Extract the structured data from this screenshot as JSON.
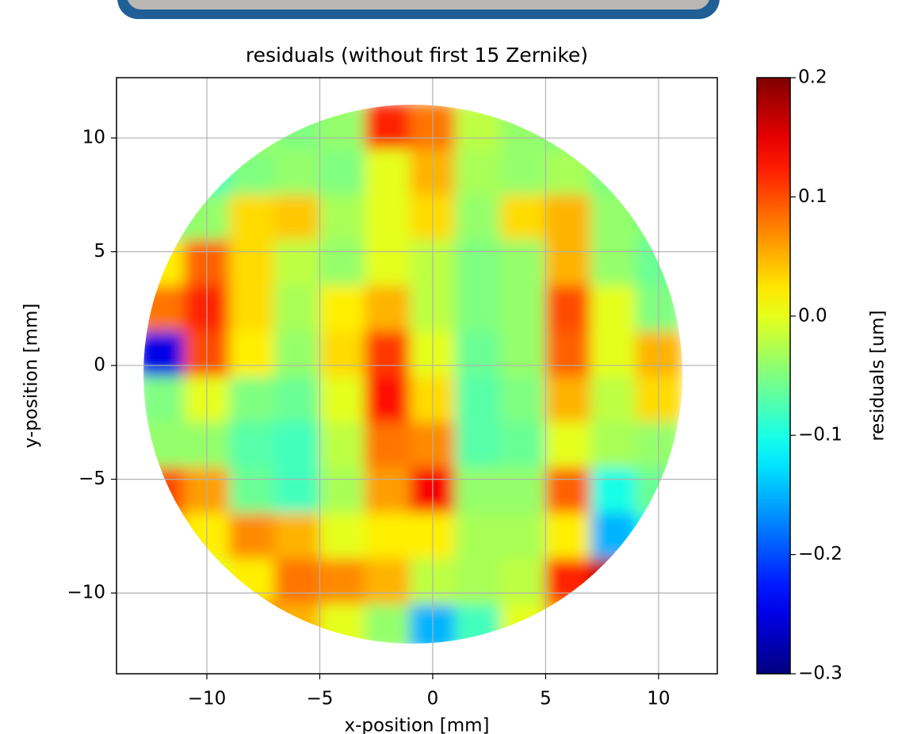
{
  "chart_data": {
    "type": "heatmap",
    "title": "residuals (without first 15 Zernike)",
    "xlabel": "x-position [mm]",
    "ylabel": "y-position [mm]",
    "colorbar_label": "residuals [um]",
    "colormap": "jet",
    "grid": true,
    "xlim": [
      -14,
      12.6
    ],
    "ylim": [
      -13.55,
      12.65
    ],
    "xticks": [
      {
        "value": -10,
        "label": "−10"
      },
      {
        "value": -5,
        "label": "−5"
      },
      0,
      5,
      10
    ],
    "yticks": [
      {
        "value": -10,
        "label": "−10"
      },
      {
        "value": -5,
        "label": "−5"
      },
      0,
      5,
      10
    ],
    "clim": [
      -0.3,
      0.2
    ],
    "cticks": [
      {
        "value": -0.3,
        "label": "−0.3"
      },
      {
        "value": -0.2,
        "label": "−0.2"
      },
      {
        "value": -0.1,
        "label": "−0.1"
      },
      {
        "value": 0,
        "label": "0.0"
      },
      0.1,
      0.2
    ],
    "x": [
      -12,
      -10,
      -8,
      -6,
      -4,
      -2,
      0,
      2,
      4,
      6,
      8,
      10
    ],
    "y": [
      10.5,
      8.5,
      6.5,
      4.5,
      2.5,
      0.5,
      -1.5,
      -3.5,
      -5.5,
      -7.5,
      -9.5,
      -11.5
    ],
    "z": [
      [
        -0.03,
        -0.03,
        -0.03,
        -0.05,
        -0.04,
        0.12,
        0.08,
        -0.02,
        -0.04,
        -0.05,
        -0.05,
        -0.05
      ],
      [
        -0.1,
        -0.08,
        -0.05,
        -0.04,
        -0.05,
        0.0,
        0.05,
        -0.03,
        -0.04,
        -0.03,
        -0.05,
        -0.05
      ],
      [
        -0.06,
        -0.04,
        0.03,
        0.04,
        -0.03,
        0.0,
        0.03,
        -0.04,
        0.03,
        0.05,
        -0.04,
        -0.05
      ],
      [
        0.02,
        0.09,
        0.03,
        -0.02,
        -0.04,
        0.0,
        -0.02,
        -0.05,
        -0.04,
        0.05,
        -0.04,
        -0.06
      ],
      [
        0.08,
        0.12,
        0.03,
        -0.03,
        0.02,
        0.05,
        -0.02,
        -0.05,
        -0.04,
        0.1,
        0.0,
        -0.05
      ],
      [
        -0.25,
        0.1,
        0.02,
        -0.04,
        0.03,
        0.11,
        0.0,
        -0.06,
        -0.04,
        0.09,
        0.0,
        0.05
      ],
      [
        -0.05,
        0.0,
        -0.05,
        -0.06,
        0.0,
        0.13,
        0.03,
        -0.07,
        -0.05,
        0.05,
        -0.02,
        0.03
      ],
      [
        -0.04,
        -0.04,
        -0.07,
        -0.08,
        -0.02,
        0.08,
        0.07,
        -0.07,
        -0.06,
        0.0,
        -0.03,
        -0.04
      ],
      [
        0.1,
        0.06,
        -0.06,
        -0.08,
        -0.03,
        0.06,
        0.14,
        -0.04,
        -0.04,
        0.09,
        -0.1,
        -0.06
      ],
      [
        0.05,
        0.02,
        0.07,
        0.05,
        0.0,
        0.02,
        0.02,
        -0.03,
        -0.03,
        0.02,
        -0.15,
        -0.1
      ],
      [
        0.0,
        0.0,
        0.02,
        0.08,
        0.07,
        0.05,
        -0.02,
        -0.03,
        -0.02,
        0.12,
        0.17,
        -0.1
      ],
      [
        0.0,
        0.0,
        0.12,
        0.05,
        0.0,
        -0.04,
        -0.15,
        -0.08,
        0.0,
        0.05,
        0.0,
        0.0
      ]
    ]
  }
}
